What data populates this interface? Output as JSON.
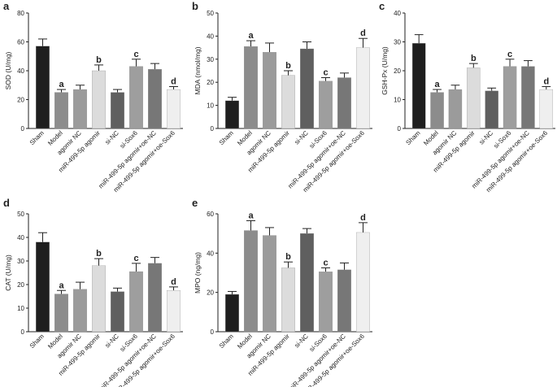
{
  "chart_data": [
    {
      "type": "bar",
      "panel": "a",
      "ylabel": "SOD (U/mg)",
      "categories": [
        "Sham",
        "Model",
        "agomir NC",
        "miR-499-5p agomir",
        "si-NC",
        "si-Sox6",
        "miR-499-5p agomir+oe-NC",
        "miR-499-5p agomir+oe-Sox6"
      ],
      "values": [
        57,
        25,
        27,
        40,
        25,
        43,
        41,
        27
      ],
      "errors": [
        5,
        2,
        3,
        4,
        2,
        5,
        4,
        2
      ],
      "letters": [
        null,
        "a",
        null,
        "b",
        null,
        "c",
        null,
        "d"
      ],
      "colors": [
        "#1e1e1e",
        "#8c8c8c",
        "#9b9b9b",
        "#dcdcdc",
        "#5f5f5f",
        "#9e9e9e",
        "#777777",
        "#efefef"
      ],
      "ylim": [
        0,
        80
      ],
      "yticks": [
        0,
        20,
        40,
        60,
        80
      ]
    },
    {
      "type": "bar",
      "panel": "b",
      "ylabel": "MDA (nmol/mg)",
      "categories": [
        "Sham",
        "Model",
        "agomir NC",
        "miR-499-5p agomir",
        "si-NC",
        "si-Sox6",
        "miR-499-5p agomir+oe-NC",
        "miR-499-5p agomir+oe-Sox6"
      ],
      "values": [
        12,
        35.5,
        33,
        23,
        34.5,
        20.5,
        22,
        35
      ],
      "errors": [
        1.5,
        2.5,
        4,
        2,
        3,
        1.5,
        2,
        4
      ],
      "letters": [
        null,
        "a",
        null,
        "b",
        null,
        "c",
        null,
        "d"
      ],
      "colors": [
        "#1e1e1e",
        "#8c8c8c",
        "#9b9b9b",
        "#dcdcdc",
        "#5f5f5f",
        "#9e9e9e",
        "#777777",
        "#efefef"
      ],
      "ylim": [
        0,
        50
      ],
      "yticks": [
        0,
        10,
        20,
        30,
        40,
        50
      ]
    },
    {
      "type": "bar",
      "panel": "c",
      "ylabel": "GSH-Px (U/mg)",
      "categories": [
        "Sham",
        "Model",
        "agomir NC",
        "miR-499-5p agomir",
        "si-NC",
        "si-Sox6",
        "miR-499-5p agomir+oe-NC",
        "miR-499-5p agomir+oe-Sox6"
      ],
      "values": [
        29.5,
        12.5,
        13.5,
        21,
        13,
        21.5,
        21.5,
        13.5
      ],
      "errors": [
        3,
        1,
        1.5,
        1.5,
        1,
        2.5,
        2,
        1
      ],
      "letters": [
        null,
        "a",
        null,
        "b",
        null,
        "c",
        null,
        "d"
      ],
      "colors": [
        "#1e1e1e",
        "#8c8c8c",
        "#9b9b9b",
        "#dcdcdc",
        "#5f5f5f",
        "#9e9e9e",
        "#777777",
        "#efefef"
      ],
      "ylim": [
        0,
        40
      ],
      "yticks": [
        0,
        10,
        20,
        30,
        40
      ]
    },
    {
      "type": "bar",
      "panel": "d",
      "ylabel": "CAT (U/mg)",
      "categories": [
        "Sham",
        "Model",
        "agomir NC",
        "miR-499-5p agomir",
        "si-NC",
        "si-Sox6",
        "miR-499-5p agomir+oe-NC",
        "miR-499-5p agomir+oe-Sox6"
      ],
      "values": [
        38,
        16,
        18,
        28,
        17,
        25.5,
        29,
        17.5
      ],
      "errors": [
        4,
        1.5,
        3,
        3,
        1.5,
        3.5,
        2.5,
        1.5
      ],
      "letters": [
        null,
        "a",
        null,
        "b",
        null,
        "c",
        null,
        "d"
      ],
      "colors": [
        "#1e1e1e",
        "#8c8c8c",
        "#9b9b9b",
        "#dcdcdc",
        "#5f5f5f",
        "#9e9e9e",
        "#777777",
        "#efefef"
      ],
      "ylim": [
        0,
        50
      ],
      "yticks": [
        0,
        10,
        20,
        30,
        40,
        50
      ]
    },
    {
      "type": "bar",
      "panel": "e",
      "ylabel": "MPO (ng/mg)",
      "categories": [
        "Sham",
        "Model",
        "agomir NC",
        "miR-499-5p agomir",
        "si-NC",
        "si-Sox6",
        "miR-499-5p agomir+oe-NC",
        "miR-499-5p agomir+oe-Sox6"
      ],
      "values": [
        19,
        51.5,
        49,
        32.5,
        50,
        30.5,
        31.5,
        50.5
      ],
      "errors": [
        1.5,
        5,
        4,
        3,
        2.5,
        2,
        3.5,
        5
      ],
      "letters": [
        null,
        "a",
        null,
        "b",
        null,
        "c",
        null,
        "d"
      ],
      "colors": [
        "#1e1e1e",
        "#8c8c8c",
        "#9b9b9b",
        "#dcdcdc",
        "#5f5f5f",
        "#9e9e9e",
        "#777777",
        "#efefef"
      ],
      "ylim": [
        0,
        60
      ],
      "yticks": [
        0,
        20,
        40,
        60
      ]
    }
  ]
}
